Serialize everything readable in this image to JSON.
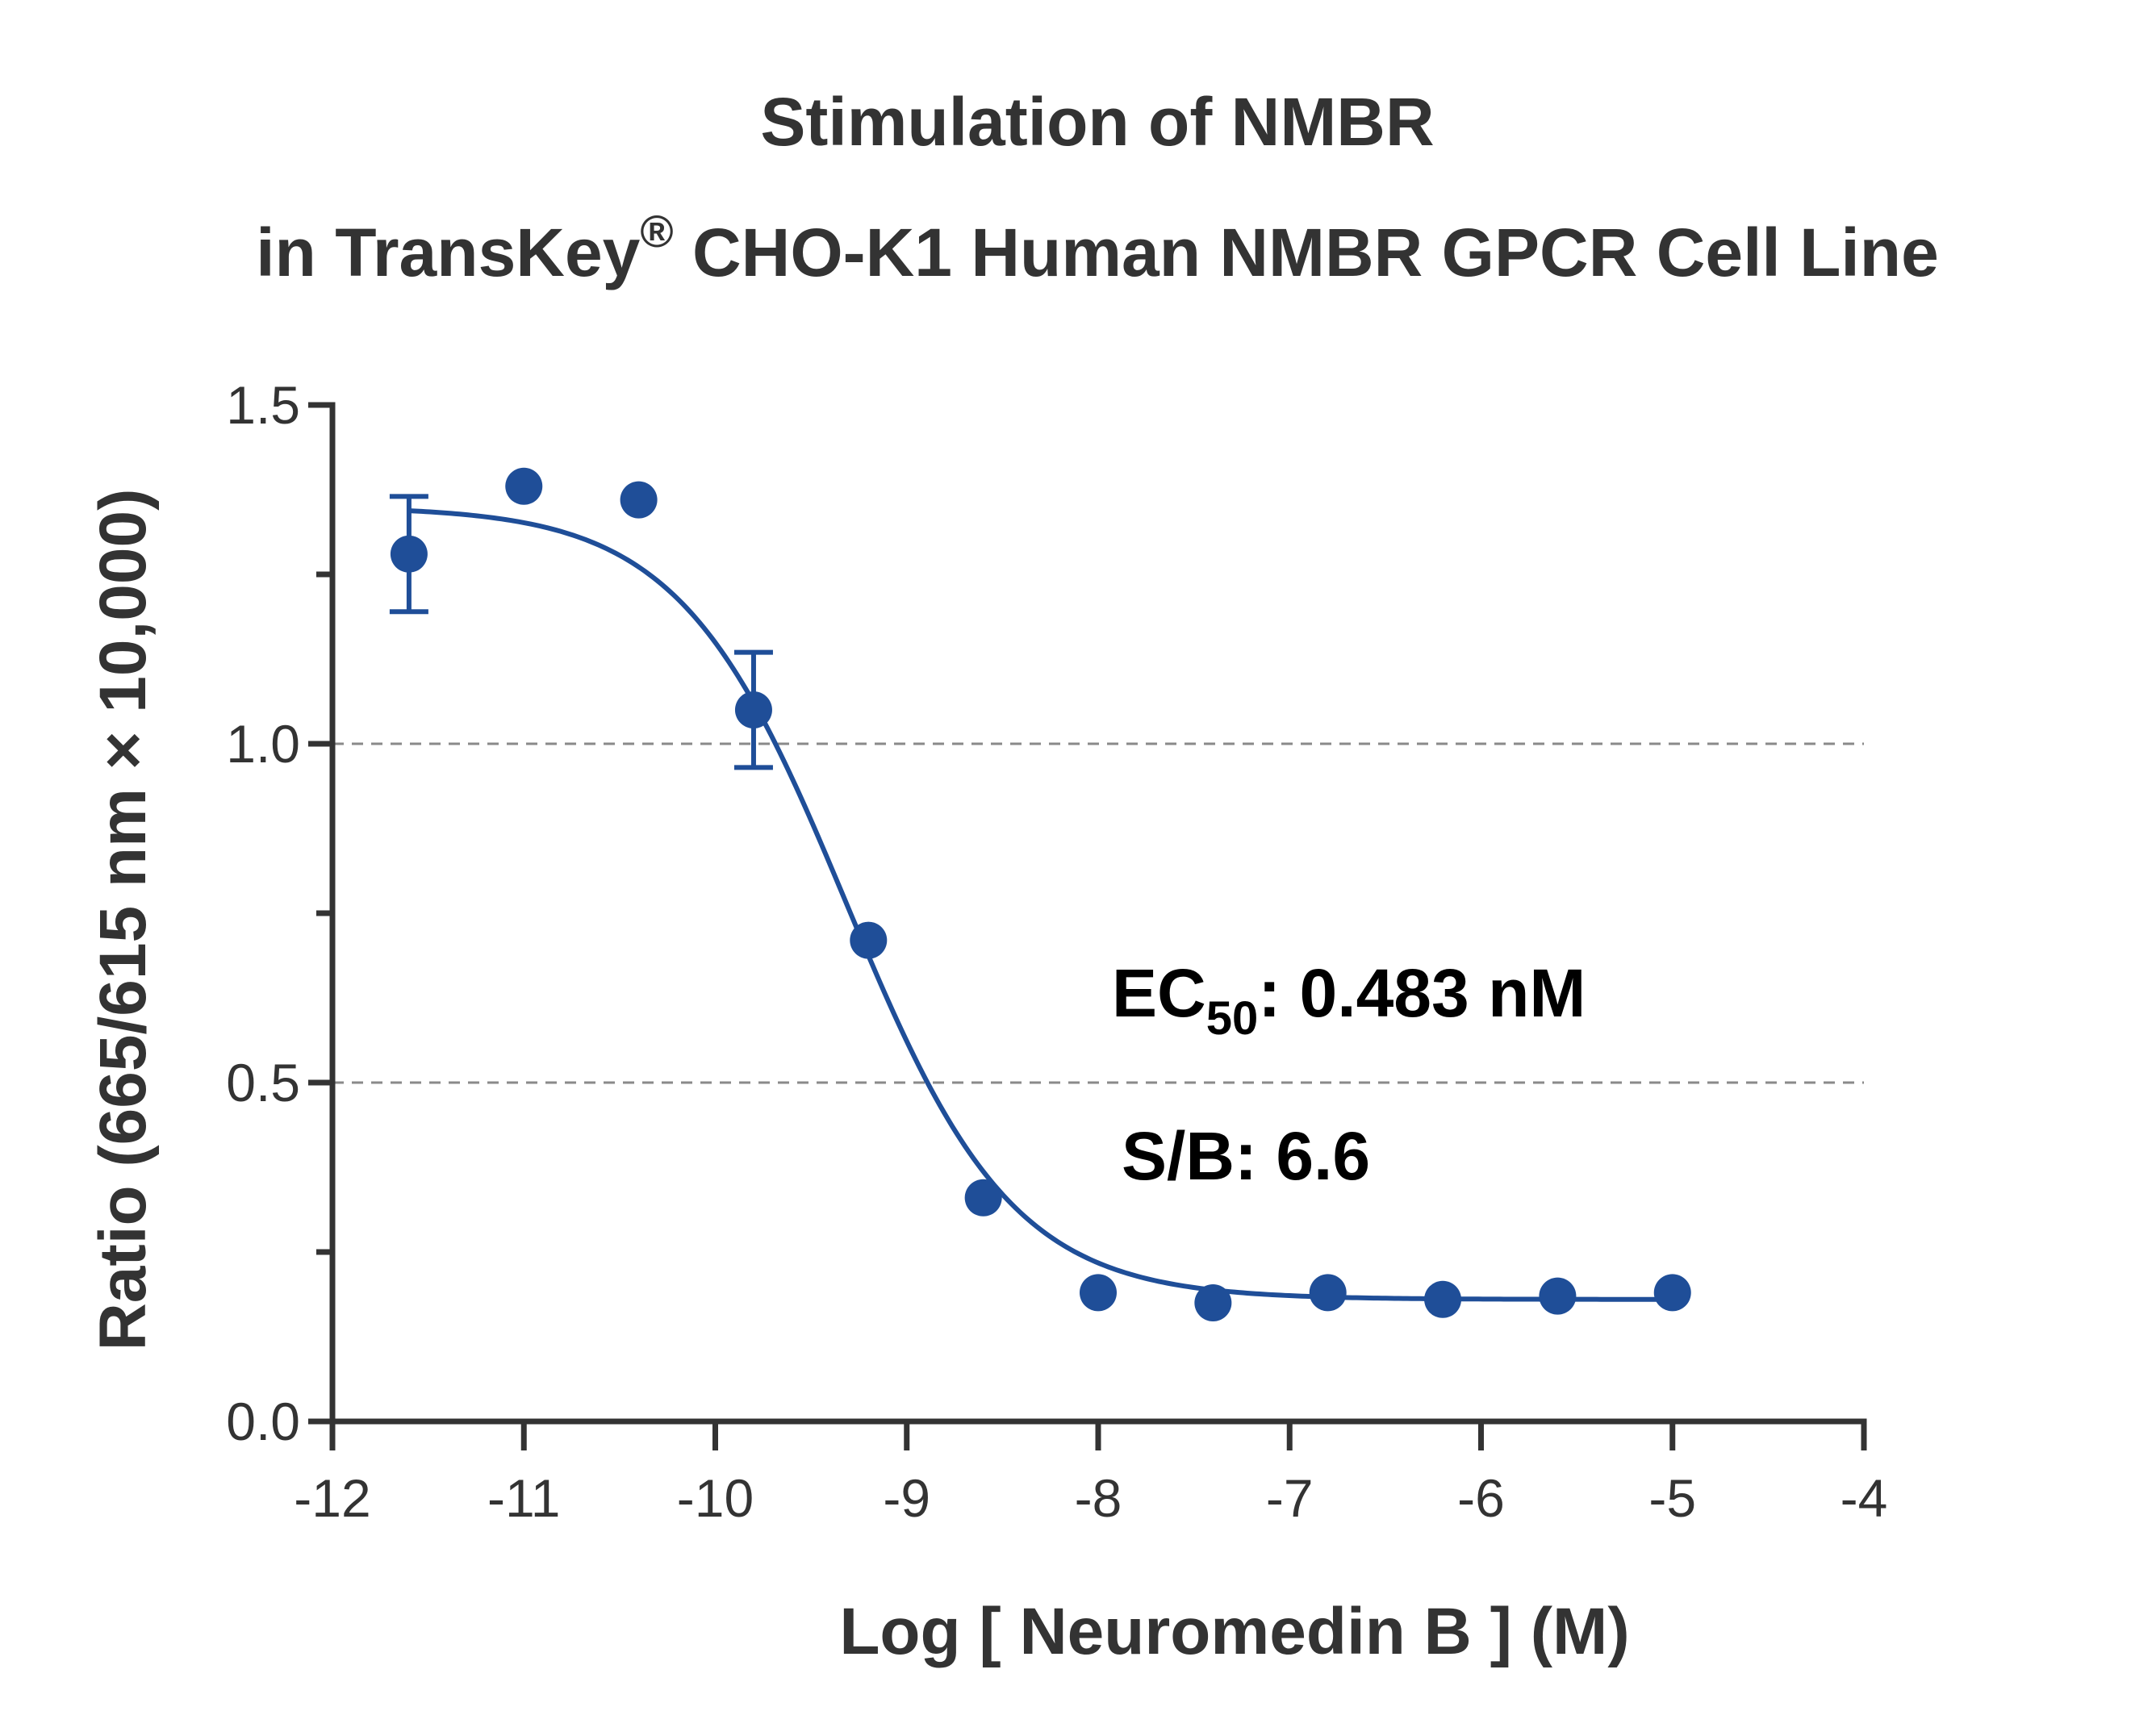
{
  "colors": {
    "series": "#1f4e98",
    "axis": "#333333",
    "gridline": "#8a8a8a",
    "text": "#333333",
    "annotation": "#000000"
  },
  "chart_data": {
    "type": "scatter",
    "title_line1": "Stimulation of  NMBR",
    "title_line2_prefix": "in TransKey",
    "title_line2_sup": "®",
    "title_line2_suffix": " CHO-K1 Human NMBR GPCR Cell Line",
    "xlabel": "Log [ Neuromedin B ]  (M)",
    "ylabel": "Ratio (665/615 nm × 10,000)",
    "xlim": [
      -12,
      -4
    ],
    "ylim": [
      0,
      1.5
    ],
    "xticks": [
      -12,
      -11,
      -10,
      -9,
      -8,
      -7,
      -6,
      -5,
      -4
    ],
    "xtick_labels": [
      "-12",
      "-11",
      "-10",
      "-9",
      "-8",
      "-7",
      "-6",
      "-5",
      "-4"
    ],
    "yticks_major": [
      0,
      0.5,
      1.0,
      1.5
    ],
    "ytick_labels": [
      "0.0",
      "0.5",
      "1.0",
      "1.5"
    ],
    "yticks_minor": [
      0.25,
      0.75,
      1.25
    ],
    "reference_lines": [
      0.5,
      1.0
    ],
    "series": [
      {
        "points": [
          {
            "x": -11.6,
            "y": 1.28,
            "err": 0.085
          },
          {
            "x": -11.0,
            "y": 1.38,
            "err": 0
          },
          {
            "x": -10.4,
            "y": 1.36,
            "err": 0
          },
          {
            "x": -9.8,
            "y": 1.05,
            "err": 0.085
          },
          {
            "x": -9.2,
            "y": 0.71,
            "err": 0
          },
          {
            "x": -8.6,
            "y": 0.33,
            "err": 0
          },
          {
            "x": -8.0,
            "y": 0.19,
            "err": 0
          },
          {
            "x": -7.4,
            "y": 0.175,
            "err": 0
          },
          {
            "x": -6.8,
            "y": 0.19,
            "err": 0
          },
          {
            "x": -6.2,
            "y": 0.18,
            "err": 0
          },
          {
            "x": -5.6,
            "y": 0.185,
            "err": 0
          },
          {
            "x": -5.0,
            "y": 0.19,
            "err": 0
          }
        ],
        "fit": {
          "model": "four-parameter logistic",
          "top": 1.35,
          "bottom": 0.18,
          "log_ec50": -9.316,
          "hill": 1.0
        }
      }
    ],
    "annotations": {
      "ec50_prefix": "EC",
      "ec50_sub": "50",
      "ec50_value": ": 0.483 nM",
      "sb": "S/B: 6.6"
    }
  }
}
